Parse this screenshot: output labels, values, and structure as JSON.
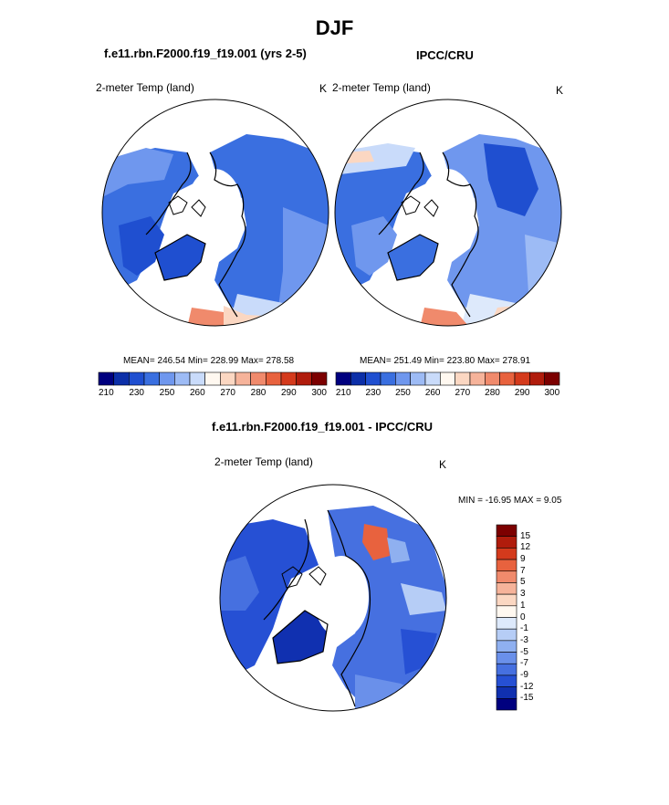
{
  "title": "DJF",
  "panels": [
    {
      "case_title": "f.e11.rbn.F2000.f19_f19.001 (yrs 2-5)",
      "variable": "2-meter Temp (land)",
      "units": "K",
      "stats": "MEAN= 246.54  Min= 228.99  Max= 278.58"
    },
    {
      "case_title": "IPCC/CRU",
      "variable": "2-meter Temp (land)",
      "units": "K",
      "stats": "MEAN= 251.49  Min= 223.80  Max= 278.91"
    },
    {
      "case_title": "f.e11.rbn.F2000.f19_f19.001 - IPCC/CRU",
      "variable": "2-meter Temp (land)",
      "units": "K",
      "stats": "MIN = -16.95 MAX =   9.05"
    }
  ],
  "abs_colorbar": {
    "colors": [
      "#00007f",
      "#0c2fa8",
      "#1f4fd0",
      "#3a6fe0",
      "#6f97ee",
      "#9dbbf5",
      "#c9dbfa",
      "#fff8f0",
      "#fbd7c2",
      "#f6b39a",
      "#f08a6c",
      "#e8623e",
      "#d43a1c",
      "#b01c0c",
      "#7c0000"
    ],
    "tick_labels": [
      "210",
      "230",
      "250",
      "260",
      "270",
      "280",
      "290",
      "300"
    ]
  },
  "diff_colorbar": {
    "colors": [
      "#7c0000",
      "#b01c0c",
      "#d43a1c",
      "#e8623e",
      "#f08a6c",
      "#f6b39a",
      "#fbd7c2",
      "#fff8f0",
      "#dde9fb",
      "#b6cdf6",
      "#8fb0f0",
      "#6a90ea",
      "#4670e0",
      "#2650d4",
      "#1030b0",
      "#00007f"
    ],
    "tick_labels": [
      "15",
      "12",
      "9",
      "7",
      "5",
      "3",
      "1",
      "0",
      "-1",
      "-3",
      "-5",
      "-7",
      "-9",
      "-12",
      "-15"
    ]
  },
  "chart_data": {
    "type": "heatmap",
    "title": "DJF",
    "projection": "north polar stereographic",
    "fields": [
      {
        "name": "f.e11.rbn.F2000.f19_f19.001 (yrs 2-5)",
        "variable": "2-meter Temp (land)",
        "units": "K",
        "mean": 246.54,
        "min": 228.99,
        "max": 278.58
      },
      {
        "name": "IPCC/CRU",
        "variable": "2-meter Temp (land)",
        "units": "K",
        "mean": 251.49,
        "min": 223.8,
        "max": 278.91
      },
      {
        "name": "f.e11.rbn.F2000.f19_f19.001 - IPCC/CRU",
        "variable": "2-meter Temp (land)",
        "units": "K",
        "min": -16.95,
        "max": 9.05
      }
    ],
    "abs_levels": [
      210,
      230,
      250,
      260,
      270,
      280,
      290,
      300
    ],
    "diff_levels": [
      15,
      12,
      9,
      7,
      5,
      3,
      1,
      0,
      -1,
      -3,
      -5,
      -7,
      -9,
      -12,
      -15
    ]
  }
}
